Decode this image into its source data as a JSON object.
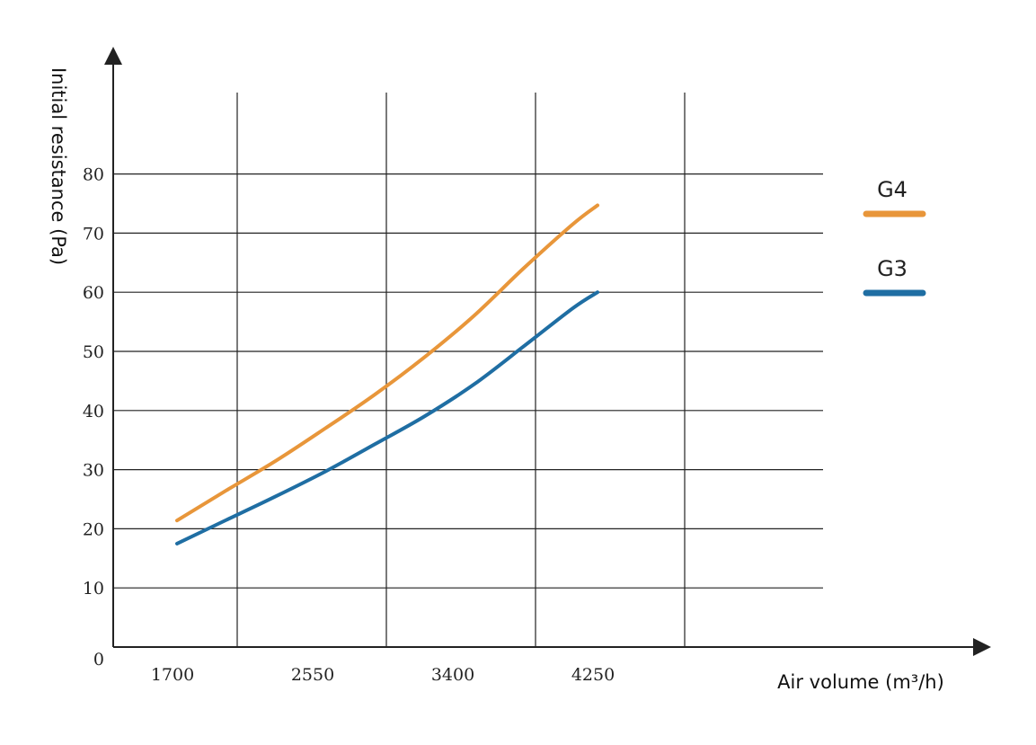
{
  "chart_data": {
    "type": "line",
    "xlabel": "Air volume (m³/h)",
    "ylabel": "Initial resistance (Pa)",
    "x_ticks": [
      "1700",
      "2550",
      "3400",
      "4250"
    ],
    "origin_label": "0",
    "y_ticks": [
      "10",
      "20",
      "30",
      "40",
      "50",
      "60",
      "70",
      "80"
    ],
    "ylim": [
      0,
      80
    ],
    "grid": true,
    "legend_position": "right",
    "series": [
      {
        "name": "G4",
        "color": "#E8963A",
        "points": [
          [
            1700,
            21.4
          ],
          [
            2000,
            26.5
          ],
          [
            2300,
            31.5
          ],
          [
            2600,
            37.0
          ],
          [
            2900,
            42.7
          ],
          [
            3200,
            49.0
          ],
          [
            3500,
            56.0
          ],
          [
            3800,
            64.0
          ],
          [
            4100,
            71.5
          ],
          [
            4250,
            74.7
          ]
        ]
      },
      {
        "name": "G3",
        "color": "#1F6EA3",
        "points": [
          [
            1700,
            17.5
          ],
          [
            2000,
            21.5
          ],
          [
            2300,
            25.5
          ],
          [
            2600,
            29.7
          ],
          [
            2900,
            34.3
          ],
          [
            3200,
            39.0
          ],
          [
            3500,
            44.4
          ],
          [
            3800,
            50.8
          ],
          [
            4100,
            57.3
          ],
          [
            4250,
            60.0
          ]
        ]
      }
    ]
  }
}
